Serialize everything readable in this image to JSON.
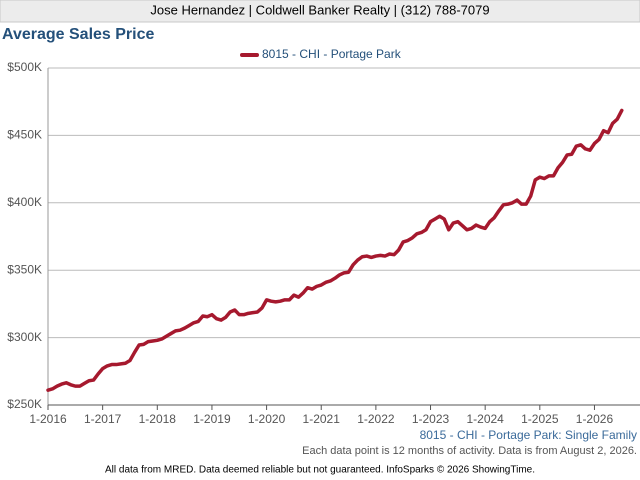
{
  "header": {
    "contact": "Jose Hernandez | Coldwell Banker Realty | (312) 788-7079"
  },
  "chart_data": {
    "type": "line",
    "title": "Average Sales Price",
    "x": [
      "2016-01",
      "2016-02",
      "2016-03",
      "2016-04",
      "2016-05",
      "2016-06",
      "2016-07",
      "2016-08",
      "2016-09",
      "2016-10",
      "2016-11",
      "2016-12",
      "2017-01",
      "2017-02",
      "2017-03",
      "2017-04",
      "2017-05",
      "2017-06",
      "2017-07",
      "2017-08",
      "2017-09",
      "2017-10",
      "2017-11",
      "2017-12",
      "2018-01",
      "2018-02",
      "2018-03",
      "2018-04",
      "2018-05",
      "2018-06",
      "2018-07",
      "2018-08",
      "2018-09",
      "2018-10",
      "2018-11",
      "2018-12",
      "2019-01",
      "2019-02",
      "2019-03",
      "2019-04",
      "2019-05",
      "2019-06",
      "2019-07",
      "2019-08",
      "2019-09",
      "2019-10",
      "2019-11",
      "2019-12",
      "2020-01",
      "2020-02",
      "2020-03",
      "2020-04",
      "2020-05",
      "2020-06",
      "2020-07",
      "2020-08",
      "2020-09",
      "2020-10",
      "2020-11",
      "2020-12",
      "2021-01",
      "2021-02",
      "2021-03",
      "2021-04",
      "2021-05",
      "2021-06",
      "2021-07",
      "2021-08",
      "2021-09",
      "2021-10",
      "2021-11",
      "2021-12",
      "2022-01",
      "2022-02",
      "2022-03",
      "2022-04",
      "2022-05",
      "2022-06",
      "2022-07",
      "2022-08",
      "2022-09",
      "2022-10",
      "2022-11",
      "2022-12",
      "2023-01",
      "2023-02",
      "2023-03",
      "2023-04",
      "2023-05",
      "2023-06",
      "2023-07",
      "2023-08",
      "2023-09",
      "2023-10",
      "2023-11",
      "2023-12",
      "2024-01",
      "2024-02",
      "2024-03",
      "2024-04",
      "2024-05",
      "2024-06",
      "2024-07",
      "2024-08",
      "2024-09",
      "2024-10",
      "2024-11",
      "2024-12",
      "2025-01",
      "2025-02",
      "2025-03",
      "2025-04",
      "2025-05",
      "2025-06",
      "2025-07",
      "2025-08",
      "2025-09",
      "2025-10",
      "2025-11",
      "2025-12",
      "2026-01",
      "2026-02",
      "2026-03",
      "2026-04",
      "2026-05",
      "2026-06",
      "2026-07"
    ],
    "series": [
      {
        "name": "8015 - CHI - Portage Park",
        "color": "#a6192e",
        "values": [
          261000,
          262000,
          264000,
          265500,
          266500,
          265000,
          264000,
          264000,
          266000,
          268000,
          268500,
          273000,
          277000,
          279000,
          280000,
          280000,
          280500,
          281000,
          283000,
          289000,
          294500,
          295000,
          297000,
          297500,
          298000,
          299000,
          301000,
          303000,
          305000,
          305500,
          307000,
          309000,
          311000,
          312000,
          316000,
          315500,
          317000,
          314000,
          313000,
          315000,
          319000,
          320500,
          317000,
          317000,
          318000,
          318500,
          319000,
          322000,
          328000,
          327000,
          326500,
          327000,
          328000,
          328000,
          331500,
          330000,
          333000,
          337000,
          336000,
          338000,
          339000,
          341000,
          342000,
          344000,
          346500,
          348000,
          348500,
          354000,
          357500,
          360000,
          360500,
          359500,
          360500,
          361000,
          360500,
          362000,
          361500,
          365000,
          371000,
          372000,
          374000,
          377000,
          378000,
          380000,
          386000,
          388000,
          390000,
          388000,
          380000,
          385000,
          386000,
          383000,
          380000,
          381000,
          383500,
          382000,
          381000,
          386000,
          389000,
          394000,
          398500,
          399000,
          400000,
          402000,
          399000,
          399000,
          405000,
          417000,
          419000,
          418000,
          420000,
          420000,
          426000,
          430000,
          435500,
          436000,
          442000,
          443000,
          440000,
          439000,
          444000,
          447000,
          453500,
          452000,
          459000,
          462000,
          468500
        ]
      }
    ],
    "xlim": [
      "2016-01",
      "2026-11"
    ],
    "xticks": [
      {
        "value": "2016-01",
        "label": "1-2016"
      },
      {
        "value": "2017-01",
        "label": "1-2017"
      },
      {
        "value": "2018-01",
        "label": "1-2018"
      },
      {
        "value": "2019-01",
        "label": "1-2019"
      },
      {
        "value": "2020-01",
        "label": "1-2020"
      },
      {
        "value": "2021-01",
        "label": "1-2021"
      },
      {
        "value": "2022-01",
        "label": "1-2022"
      },
      {
        "value": "2023-01",
        "label": "1-2023"
      },
      {
        "value": "2024-01",
        "label": "1-2024"
      },
      {
        "value": "2025-01",
        "label": "1-2025"
      },
      {
        "value": "2026-01",
        "label": "1-2026"
      }
    ],
    "ylim": [
      250000,
      500000
    ],
    "yticks": [
      {
        "value": 250000,
        "label": "$250K"
      },
      {
        "value": 300000,
        "label": "$300K"
      },
      {
        "value": 350000,
        "label": "$350K"
      },
      {
        "value": 400000,
        "label": "$400K"
      },
      {
        "value": 450000,
        "label": "$450K"
      },
      {
        "value": 500000,
        "label": "$500K"
      }
    ],
    "grid": true,
    "caption": "8015 - CHI - Portage Park: Single Family",
    "note": "Each data point is 12 months of activity. Data is from August 2, 2026."
  },
  "footer": {
    "disclaimer": "All data from MRED. Data deemed reliable but not guaranteed. InfoSparks © 2026 ShowingTime."
  }
}
